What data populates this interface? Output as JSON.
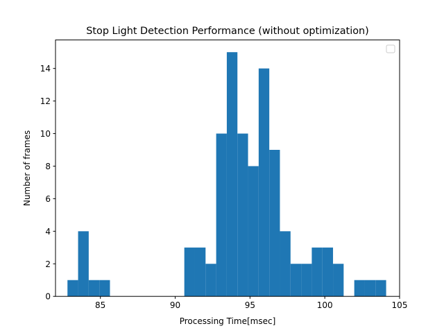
{
  "chart_data": {
    "type": "bar",
    "title": "Stop Light Detection Performance (without optimization)",
    "xlabel": "Processing Time[msec]",
    "ylabel": "Number of frames",
    "xlim": [
      82.0,
      105.0
    ],
    "ylim": [
      0,
      15.75
    ],
    "xticks": [
      85,
      90,
      95,
      100,
      105
    ],
    "yticks": [
      0,
      2,
      4,
      6,
      8,
      10,
      12,
      14
    ],
    "legend": "top-right (empty)",
    "grid": false,
    "color": "#1f77b4",
    "bin_edges": [
      82.8,
      83.51,
      84.22,
      84.93,
      85.64,
      86.35,
      87.06,
      87.77,
      88.48,
      89.19,
      89.9,
      90.61,
      91.32,
      92.03,
      92.74,
      93.45,
      94.16,
      94.87,
      95.58,
      96.29,
      97.0,
      97.71,
      98.42,
      99.13,
      99.84,
      100.55,
      101.26,
      101.97,
      102.68,
      103.39,
      104.1
    ],
    "values": [
      1,
      4,
      1,
      1,
      0,
      0,
      0,
      0,
      0,
      0,
      0,
      3,
      3,
      2,
      10,
      15,
      10,
      8,
      14,
      9,
      4,
      2,
      2,
      3,
      3,
      2,
      0,
      1,
      1,
      1
    ]
  }
}
